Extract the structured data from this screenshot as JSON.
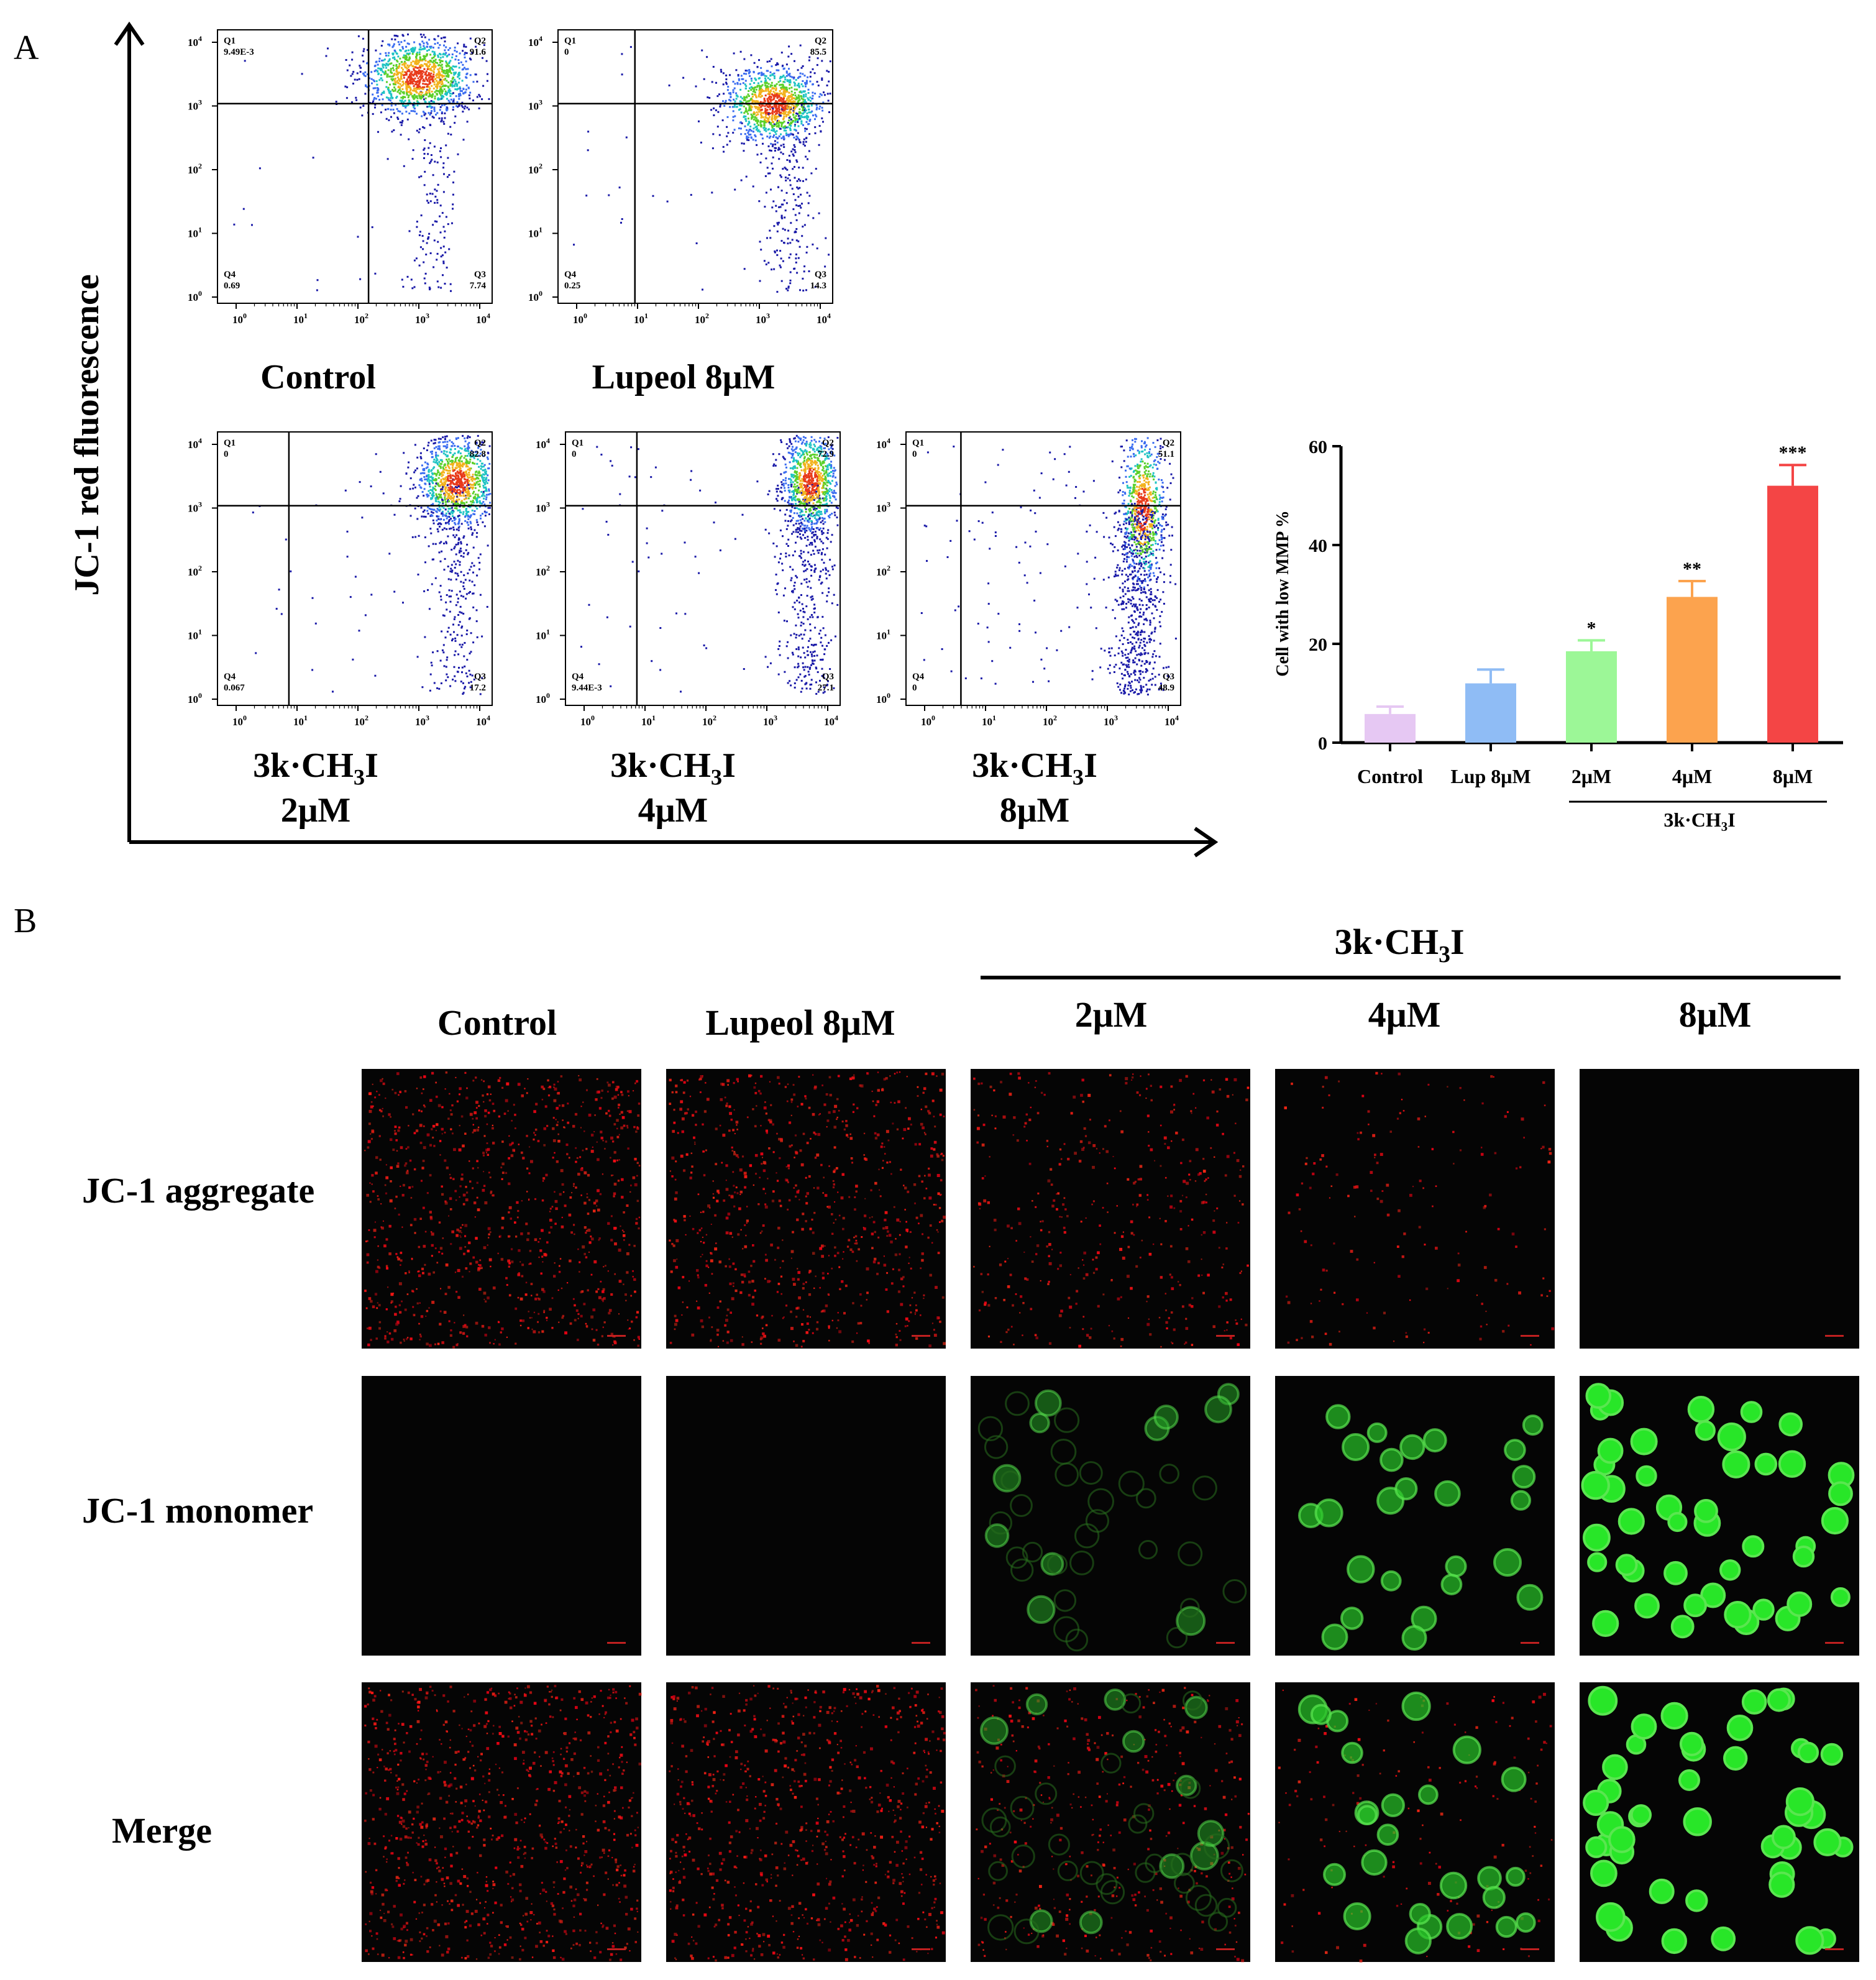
{
  "panel_a": {
    "label": "A",
    "y_axis_label": "JC-1 red fluorescence",
    "plot_labels": [
      {
        "line1": "Control",
        "line2": ""
      },
      {
        "line1": "Lupeol 8μM",
        "line2": ""
      },
      {
        "line1": "3k·CH3I",
        "line2": "2μM"
      },
      {
        "line1": "3k·CH3I",
        "line2": "4μM"
      },
      {
        "line1": "3k·CH3I",
        "line2": "8μM"
      }
    ],
    "flow_plots": [
      {
        "q1": "Q1",
        "q1v": "9.49E-3",
        "q2": "Q2",
        "q2v": "91.6",
        "q3": "Q3",
        "q3v": "7.74",
        "q4": "Q4",
        "q4v": "0.69"
      },
      {
        "q1": "Q1",
        "q1v": "0",
        "q2": "Q2",
        "q2v": "85.5",
        "q3": "Q3",
        "q3v": "14.3",
        "q4": "Q4",
        "q4v": "0.25"
      },
      {
        "q1": "Q1",
        "q1v": "0",
        "q2": "Q2",
        "q2v": "82.8",
        "q3": "Q3",
        "q3v": "17.2",
        "q4": "Q4",
        "q4v": "0.067"
      },
      {
        "q1": "Q1",
        "q1v": "0",
        "q2": "Q2",
        "q2v": "72.9",
        "q3": "Q3",
        "q3v": "27.1",
        "q4": "Q4",
        "q4v": "9.44E-3"
      },
      {
        "q1": "Q1",
        "q1v": "0",
        "q2": "Q2",
        "q2v": "51.1",
        "q3": "Q3",
        "q3v": "48.9",
        "q4": "Q4",
        "q4v": "0"
      }
    ],
    "flow_tick_labels": [
      "10",
      "10",
      "10",
      "10",
      "10"
    ],
    "flow_tick_exponents": [
      "0",
      "1",
      "2",
      "3",
      "4"
    ]
  },
  "chart_data": {
    "type": "bar",
    "categories": [
      "Control",
      "Lup 8μM",
      "2μM",
      "4μM",
      "8μM"
    ],
    "values": [
      5.8,
      12.0,
      18.5,
      29.5,
      52.0
    ],
    "errors": [
      1.5,
      2.8,
      2.2,
      3.2,
      4.2
    ],
    "significance": [
      "",
      "",
      "*",
      "**",
      "***"
    ],
    "colors": [
      "#e6c8f3",
      "#8fbcf5",
      "#9cf797",
      "#fca34e",
      "#f44545"
    ],
    "ylabel": "Cell with low MMP %",
    "ylim": [
      0,
      60
    ],
    "yticks": [
      "0",
      "20",
      "40",
      "60"
    ],
    "group_label": "3k·CH3I",
    "grid": false
  },
  "panel_b": {
    "label": "B",
    "group_header": "3k·CH3I",
    "col_headers": [
      "Control",
      "Lupeol 8μM",
      "2μM",
      "4μM",
      "8μM"
    ],
    "row_labels": [
      "JC-1 aggregate",
      "JC-1 monomer",
      "Merge"
    ]
  }
}
